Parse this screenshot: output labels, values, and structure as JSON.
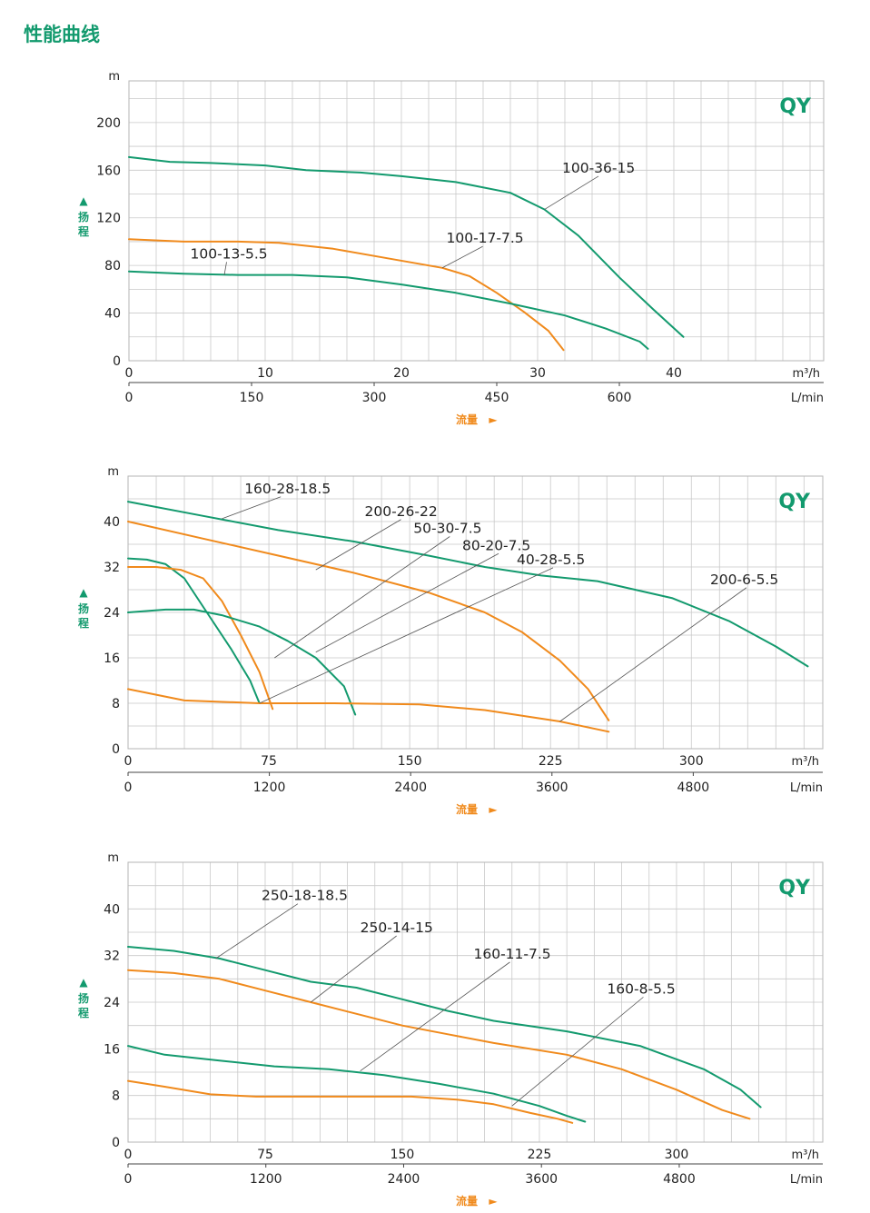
{
  "page": {
    "title": "性能曲线"
  },
  "colors": {
    "green": "#139a6e",
    "orange": "#f08a1c",
    "grid": "#c9c9c9"
  },
  "chart_data": [
    {
      "type": "line",
      "brand": "QY",
      "ylabel": "扬程",
      "yunit": "m",
      "yticks": [
        0,
        40,
        80,
        120,
        160,
        200
      ],
      "ylim": [
        0,
        235
      ],
      "xunit": "m³/h",
      "xticks": [
        0,
        10,
        20,
        30,
        40
      ],
      "xlim": [
        0,
        51
      ],
      "x2unit": "L/min",
      "x2ticks": [
        0,
        150,
        300,
        450,
        600
      ],
      "x2lim": [
        0,
        850
      ],
      "xlabel": "流量",
      "grid": true,
      "series": [
        {
          "name": "100-36-15",
          "color": "green",
          "points": [
            [
              0,
              171
            ],
            [
              3,
              167
            ],
            [
              6,
              166
            ],
            [
              10,
              164
            ],
            [
              13,
              160
            ],
            [
              17,
              158
            ],
            [
              20,
              155
            ],
            [
              24,
              150
            ],
            [
              28,
              141
            ],
            [
              30.5,
              127
            ],
            [
              33,
              105
            ],
            [
              36,
              70
            ],
            [
              38.5,
              43
            ],
            [
              40.7,
              20
            ]
          ]
        },
        {
          "name": "100-17-7.5",
          "color": "orange",
          "points": [
            [
              0,
              102
            ],
            [
              4,
              100
            ],
            [
              8,
              100
            ],
            [
              11,
              99
            ],
            [
              15,
              94
            ],
            [
              19,
              86
            ],
            [
              23,
              78
            ],
            [
              25,
              71
            ],
            [
              27,
              57
            ],
            [
              29,
              41
            ],
            [
              30.8,
              25
            ],
            [
              31.9,
              9
            ]
          ]
        },
        {
          "name": "100-13-5.5",
          "color": "green",
          "points": [
            [
              0,
              75
            ],
            [
              4,
              73
            ],
            [
              8,
              72
            ],
            [
              12,
              72
            ],
            [
              16,
              70
            ],
            [
              20,
              64
            ],
            [
              24,
              57
            ],
            [
              28,
              48
            ],
            [
              32,
              38
            ],
            [
              35,
              27
            ],
            [
              37.5,
              16
            ],
            [
              38.1,
              10
            ]
          ]
        }
      ],
      "annotations": [
        {
          "text": "100-36-15",
          "at": [
            30.5,
            127
          ],
          "label": [
            31.8,
            158
          ]
        },
        {
          "text": "100-17-7.5",
          "at": [
            23,
            78
          ],
          "label": [
            23.3,
            99
          ]
        },
        {
          "text": "100-13-5.5",
          "at": [
            7,
            72
          ],
          "label": [
            4.5,
            86
          ]
        }
      ]
    },
    {
      "type": "line",
      "brand": "QY",
      "ylabel": "扬程",
      "yunit": "m",
      "yticks": [
        0,
        8,
        16,
        24,
        32,
        40
      ],
      "ylim": [
        0,
        48
      ],
      "xunit": "m³/h",
      "xticks": [
        0,
        75,
        150,
        225,
        300
      ],
      "xlim": [
        0,
        370
      ],
      "x2unit": "L/min",
      "x2ticks": [
        0,
        1200,
        2400,
        3600,
        4800
      ],
      "x2lim": [
        0,
        5900
      ],
      "xlabel": "流量",
      "grid": true,
      "series": [
        {
          "name": "160-28-18.5",
          "color": "green",
          "points": [
            [
              0,
              43.5
            ],
            [
              40,
              41
            ],
            [
              80,
              38.5
            ],
            [
              120,
              36.5
            ],
            [
              160,
              34
            ],
            [
              190,
              32
            ],
            [
              220,
              30.5
            ],
            [
              250,
              29.5
            ],
            [
              290,
              26.5
            ],
            [
              320,
              22.5
            ],
            [
              345,
              18
            ],
            [
              362,
              14.5
            ]
          ]
        },
        {
          "name": "200-26-22",
          "color": "orange",
          "points": [
            [
              0,
              40
            ],
            [
              40,
              37
            ],
            [
              80,
              34
            ],
            [
              120,
              31
            ],
            [
              160,
              27.5
            ],
            [
              190,
              24
            ],
            [
              210,
              20.5
            ],
            [
              230,
              15.5
            ],
            [
              245,
              10.5
            ],
            [
              256,
              5
            ]
          ]
        },
        {
          "name": "50-30-7.5",
          "color": "green",
          "points": [
            [
              0,
              33.5
            ],
            [
              10,
              33.3
            ],
            [
              20,
              32.5
            ],
            [
              30,
              30
            ],
            [
              42,
              24
            ],
            [
              55,
              17.5
            ],
            [
              65,
              12
            ],
            [
              70,
              8
            ]
          ]
        },
        {
          "name": "80-20-7.5",
          "color": "orange",
          "points": [
            [
              0,
              32
            ],
            [
              15,
              32
            ],
            [
              28,
              31.5
            ],
            [
              40,
              30
            ],
            [
              50,
              26
            ],
            [
              60,
              20
            ],
            [
              70,
              13.5
            ],
            [
              77,
              7
            ]
          ]
        },
        {
          "name": "40-28-5.5",
          "color": "green",
          "points": [
            [
              0,
              24
            ],
            [
              20,
              24.5
            ],
            [
              35,
              24.5
            ],
            [
              50,
              23.5
            ],
            [
              70,
              21.5
            ],
            [
              85,
              19
            ],
            [
              100,
              16
            ],
            [
              115,
              11
            ],
            [
              121,
              6
            ]
          ]
        },
        {
          "name": "200-6-5.5",
          "color": "orange",
          "points": [
            [
              0,
              10.5
            ],
            [
              15,
              9.5
            ],
            [
              30,
              8.5
            ],
            [
              70,
              8
            ],
            [
              110,
              8
            ],
            [
              155,
              7.8
            ],
            [
              190,
              6.8
            ],
            [
              230,
              4.8
            ],
            [
              256,
              3
            ]
          ]
        }
      ],
      "annotations": [
        {
          "text": "160-28-18.5",
          "at": [
            50,
            40.5
          ],
          "label": [
            62,
            45
          ]
        },
        {
          "text": "200-26-22",
          "at": [
            100,
            31.5
          ],
          "label": [
            126,
            41
          ]
        },
        {
          "text": "50-30-7.5",
          "at": [
            78,
            16
          ],
          "label": [
            152,
            38
          ]
        },
        {
          "text": "80-20-7.5",
          "at": [
            100,
            17
          ],
          "label": [
            178,
            35
          ]
        },
        {
          "text": "40-28-5.5",
          "at": [
            70,
            8
          ],
          "label": [
            207,
            32.5
          ]
        },
        {
          "text": "200-6-5.5",
          "at": [
            230,
            4.8
          ],
          "label": [
            310,
            29
          ]
        }
      ]
    },
    {
      "type": "line",
      "brand": "QY",
      "ylabel": "扬程",
      "yunit": "m",
      "yticks": [
        0,
        8,
        16,
        24,
        32,
        40
      ],
      "ylim": [
        0,
        48
      ],
      "xunit": "m³/h",
      "xticks": [
        0,
        75,
        150,
        225,
        300
      ],
      "xlim": [
        0,
        380
      ],
      "x2unit": "L/min",
      "x2ticks": [
        0,
        1200,
        2400,
        3600,
        4800
      ],
      "x2lim": [
        0,
        6050
      ],
      "xlabel": "流量",
      "grid": true,
      "series": [
        {
          "name": "250-18-18.5",
          "color": "green",
          "points": [
            [
              0,
              33.5
            ],
            [
              25,
              32.8
            ],
            [
              50,
              31.5
            ],
            [
              75,
              29.5
            ],
            [
              100,
              27.5
            ],
            [
              125,
              26.5
            ],
            [
              150,
              24.5
            ],
            [
              175,
              22.5
            ],
            [
              200,
              20.8
            ],
            [
              240,
              19
            ],
            [
              280,
              16.5
            ],
            [
              315,
              12.5
            ],
            [
              335,
              9
            ],
            [
              346,
              6
            ]
          ]
        },
        {
          "name": "250-14-15",
          "color": "orange",
          "points": [
            [
              0,
              29.5
            ],
            [
              25,
              29
            ],
            [
              50,
              28
            ],
            [
              75,
              26
            ],
            [
              100,
              24
            ],
            [
              125,
              22
            ],
            [
              150,
              20
            ],
            [
              175,
              18.5
            ],
            [
              200,
              17
            ],
            [
              240,
              15
            ],
            [
              270,
              12.5
            ],
            [
              300,
              9
            ],
            [
              325,
              5.5
            ],
            [
              340,
              4
            ]
          ]
        },
        {
          "name": "160-11-7.5",
          "color": "green",
          "points": [
            [
              0,
              16.5
            ],
            [
              20,
              15
            ],
            [
              50,
              14
            ],
            [
              80,
              13
            ],
            [
              110,
              12.5
            ],
            [
              140,
              11.5
            ],
            [
              170,
              10
            ],
            [
              200,
              8.3
            ],
            [
              225,
              6.2
            ],
            [
              240,
              4.5
            ],
            [
              250,
              3.5
            ]
          ]
        },
        {
          "name": "160-8-5.5",
          "color": "orange",
          "points": [
            [
              0,
              10.5
            ],
            [
              20,
              9.5
            ],
            [
              45,
              8.2
            ],
            [
              70,
              7.8
            ],
            [
              100,
              7.8
            ],
            [
              130,
              7.8
            ],
            [
              155,
              7.8
            ],
            [
              180,
              7.3
            ],
            [
              200,
              6.5
            ],
            [
              220,
              5
            ],
            [
              235,
              4
            ],
            [
              243,
              3.3
            ]
          ]
        }
      ],
      "annotations": [
        {
          "text": "250-18-18.5",
          "at": [
            48,
            31.5
          ],
          "label": [
            73,
            41.5
          ]
        },
        {
          "text": "250-14-15",
          "at": [
            100,
            24
          ],
          "label": [
            127,
            36
          ]
        },
        {
          "text": "160-11-7.5",
          "at": [
            127,
            12.2
          ],
          "label": [
            189,
            31.5
          ]
        },
        {
          "text": "160-8-5.5",
          "at": [
            210,
            6.2
          ],
          "label": [
            262,
            25.5
          ]
        }
      ]
    }
  ]
}
